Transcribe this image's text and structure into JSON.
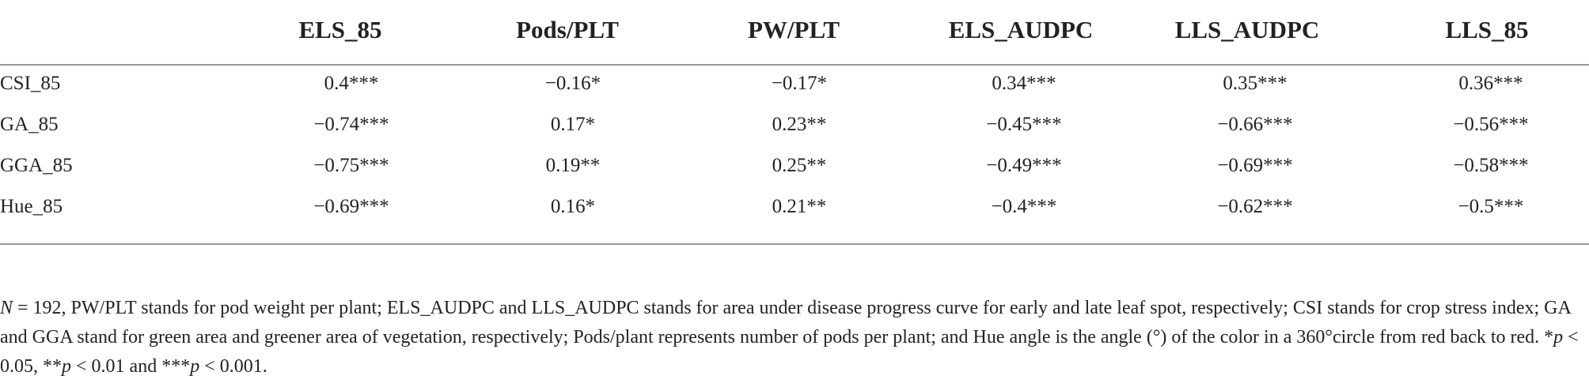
{
  "table": {
    "columns": [
      "ELS_85",
      "Pods/PLT",
      "PW/PLT",
      "ELS_AUDPC",
      "LLS_AUDPC",
      "LLS_85"
    ],
    "rows": [
      [
        "CSI_85",
        "0.4***",
        "−0.16*",
        "−0.17*",
        "0.34***",
        "0.35***",
        "0.36***"
      ],
      [
        "GA_85",
        "−0.74***",
        "0.17*",
        "0.23**",
        "−0.45***",
        "−0.66***",
        "−0.56***"
      ],
      [
        "GGA_85",
        "−0.75***",
        "0.19**",
        "0.25**",
        "−0.49***",
        "−0.69***",
        "−0.58***"
      ],
      [
        "Hue_85",
        "−0.69***",
        "0.16*",
        "0.21**",
        "−0.4***",
        "−0.62***",
        "−0.5***"
      ]
    ],
    "footnote": [
      "N",
      " = 192, PW/PLT stands for pod weight per plant; ELS_AUDPC and LLS_AUDPC stands for area under disease progress curve for early and late leaf spot, respectively; CSI stands for crop stress index; GA and GGA stand for green area and greener area of vegetation, respectively; Pods/plant represents number of pods per plant; and Hue angle is the angle (°) of the color in a 360°circle from red back to red. *",
      "p",
      " < 0.05, **",
      "p",
      " < 0.01 and ***",
      "p",
      " < 0.001."
    ]
  }
}
